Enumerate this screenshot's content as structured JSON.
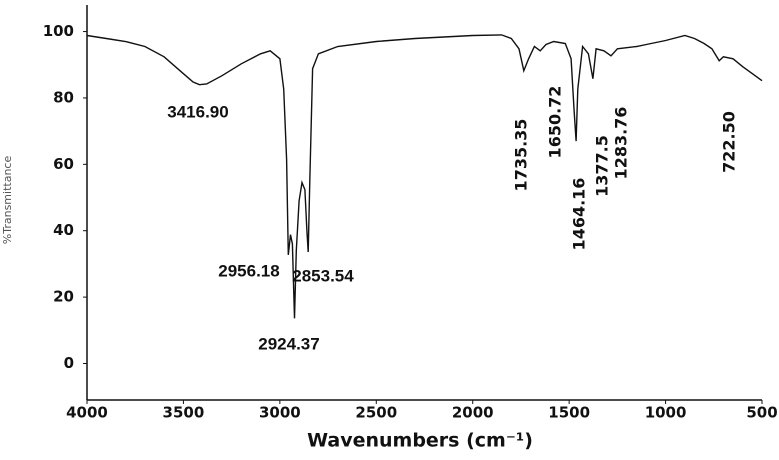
{
  "chart_data": {
    "type": "line",
    "x_label": "Wavenumbers (cm⁻¹)",
    "y_label": "%Transmittance",
    "xlim": [
      4000,
      500
    ],
    "xticks": [
      4000,
      3500,
      3000,
      2500,
      2000,
      1500,
      1000,
      500
    ],
    "ylim": [
      -11,
      108
    ],
    "yticks": [
      0,
      20,
      40,
      60,
      80,
      100
    ],
    "grid": false,
    "series": [
      {
        "name": "spectrum",
        "color": "#111111",
        "x": [
          4000,
          3900,
          3800,
          3700,
          3600,
          3500,
          3450,
          3417,
          3380,
          3300,
          3200,
          3100,
          3050,
          3000,
          2980,
          2965,
          2956,
          2945,
          2935,
          2924,
          2915,
          2900,
          2885,
          2870,
          2860,
          2853,
          2845,
          2830,
          2800,
          2700,
          2500,
          2300,
          2000,
          1850,
          1800,
          1760,
          1735,
          1710,
          1680,
          1650,
          1620,
          1580,
          1520,
          1490,
          1475,
          1464,
          1455,
          1430,
          1400,
          1377,
          1360,
          1320,
          1283,
          1250,
          1150,
          1100,
          1000,
          900,
          850,
          800,
          760,
          722,
          700,
          650,
          600,
          550,
          500
        ],
        "values": [
          98.8,
          97.9,
          97,
          95.5,
          92.4,
          87.3,
          84.8,
          84,
          84.2,
          86.7,
          90.3,
          93.3,
          94.2,
          91.8,
          82.7,
          61.5,
          32.7,
          38.8,
          36,
          13.6,
          34,
          49,
          54.5,
          52.4,
          40,
          33.6,
          55,
          88.8,
          93.3,
          95.5,
          97,
          97.9,
          98.8,
          99,
          97.9,
          94.8,
          88.2,
          91.8,
          95.5,
          94.2,
          96.1,
          97,
          96.4,
          91.8,
          76.7,
          67,
          82.7,
          95.5,
          93.3,
          85.8,
          94.8,
          94.2,
          92.7,
          94.8,
          95.5,
          96.1,
          97.3,
          98.8,
          97.9,
          96.4,
          94.8,
          91.2,
          92.4,
          91.8,
          89.4,
          87.3,
          85.2
        ]
      }
    ],
    "annotations": [
      "3416.90",
      "2956.18",
      "2853.54",
      "2924.37",
      "1735.35",
      "1650.72",
      "1464.16",
      "1377.5",
      "1283.76",
      "722.50"
    ]
  }
}
